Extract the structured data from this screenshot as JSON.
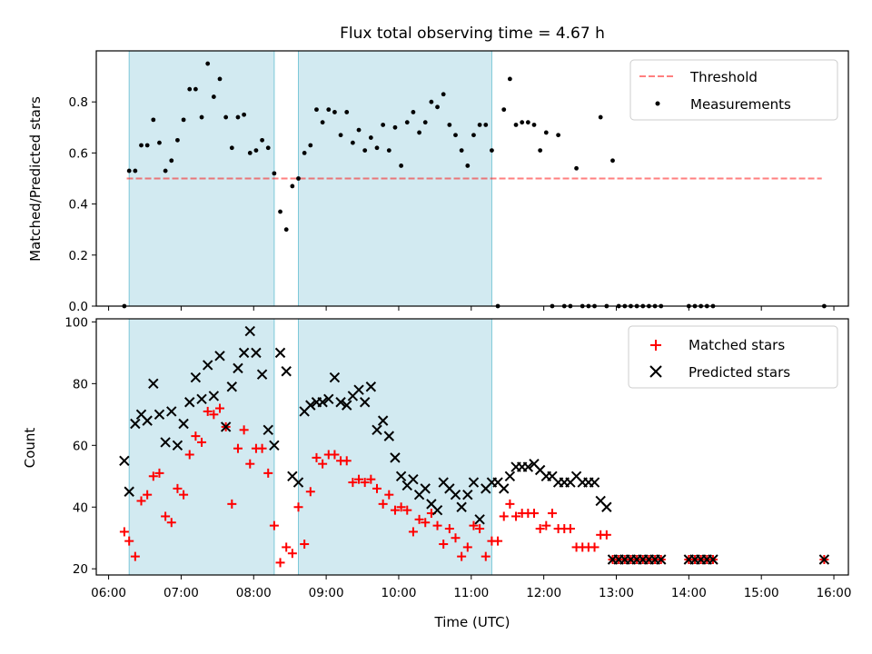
{
  "title": "Flux total observing time = 4.67 h",
  "colors": {
    "band": "#add8e6",
    "threshold": "#ff0000",
    "measurement": "#000000",
    "matched": "#ff0000",
    "predicted": "#000000"
  },
  "chart_data": [
    {
      "type": "scatter",
      "ylabel": "Matched/Predicted stars",
      "xlim_hours": [
        5.83,
        16.2
      ],
      "ylim": [
        0,
        1.0
      ],
      "yticks": [
        "0.0",
        "0.2",
        "0.4",
        "0.6",
        "0.8"
      ],
      "ytick_values": [
        0,
        0.2,
        0.4,
        0.6,
        0.8
      ],
      "observing_windows": [
        [
          "06:17",
          "08:17"
        ],
        [
          "08:37",
          "11:17"
        ]
      ],
      "legend": {
        "placement": "upper right",
        "threshold": "Threshold",
        "measurements": "Measurements"
      },
      "threshold": {
        "value": 0.5,
        "x_range": [
          "06:15",
          "15:50"
        ]
      },
      "series": [
        {
          "name": "Measurements",
          "x": [
            "06:13",
            "06:17",
            "06:22",
            "06:27",
            "06:32",
            "06:37",
            "06:42",
            "06:47",
            "06:52",
            "06:57",
            "07:02",
            "07:07",
            "07:12",
            "07:17",
            "07:22",
            "07:27",
            "07:32",
            "07:37",
            "07:42",
            "07:47",
            "07:52",
            "07:57",
            "08:02",
            "08:07",
            "08:12",
            "08:17",
            "08:22",
            "08:27",
            "08:32",
            "08:37",
            "08:42",
            "08:47",
            "08:52",
            "08:57",
            "09:02",
            "09:07",
            "09:12",
            "09:17",
            "09:22",
            "09:27",
            "09:32",
            "09:37",
            "09:42",
            "09:47",
            "09:52",
            "09:57",
            "10:02",
            "10:07",
            "10:12",
            "10:17",
            "10:22",
            "10:27",
            "10:32",
            "10:37",
            "10:42",
            "10:47",
            "10:52",
            "10:57",
            "11:02",
            "11:07",
            "11:12",
            "11:17",
            "11:22",
            "11:27",
            "11:32",
            "11:37",
            "11:42",
            "11:47",
            "11:52",
            "11:57",
            "12:02",
            "12:07",
            "12:12",
            "12:17",
            "12:22",
            "12:27",
            "12:32",
            "12:37",
            "12:42",
            "12:47",
            "12:52",
            "12:57",
            "13:02",
            "13:07",
            "13:12",
            "13:17",
            "13:22",
            "13:27",
            "13:32",
            "13:37",
            "14:00",
            "14:05",
            "14:10",
            "14:15",
            "14:20",
            "15:52"
          ],
          "y": [
            0.0,
            0.53,
            0.53,
            0.63,
            0.63,
            0.73,
            0.64,
            0.53,
            0.57,
            0.65,
            0.73,
            0.85,
            0.85,
            0.74,
            0.95,
            0.82,
            0.89,
            0.74,
            0.62,
            0.74,
            0.75,
            0.6,
            0.61,
            0.65,
            0.62,
            0.52,
            0.37,
            0.3,
            0.47,
            0.5,
            0.6,
            0.63,
            0.77,
            0.72,
            0.77,
            0.76,
            0.67,
            0.76,
            0.64,
            0.69,
            0.61,
            0.66,
            0.62,
            0.71,
            0.61,
            0.7,
            0.55,
            0.72,
            0.76,
            0.68,
            0.72,
            0.8,
            0.78,
            0.83,
            0.71,
            0.67,
            0.61,
            0.55,
            0.67,
            0.71,
            0.71,
            0.61,
            0.0,
            0.77,
            0.89,
            0.71,
            0.72,
            0.72,
            0.71,
            0.61,
            0.68,
            0.0,
            0.67,
            0.0,
            0.0,
            0.54,
            0.0,
            0.0,
            0.0,
            0.74,
            0.0,
            0.57,
            0.0,
            0.0,
            0.0,
            0.0,
            0.0,
            0.0,
            0.0,
            0.0,
            0.0,
            0.0,
            0.0,
            0.0,
            0.0,
            0.0
          ]
        }
      ]
    },
    {
      "type": "scatter",
      "xlabel": "Time (UTC)",
      "ylabel": "Count",
      "xlim_hours": [
        5.83,
        16.2
      ],
      "ylim": [
        18,
        101
      ],
      "yticks": [
        "20",
        "40",
        "60",
        "80",
        "100"
      ],
      "ytick_values": [
        20,
        40,
        60,
        80,
        100
      ],
      "xticks": [
        "06:00",
        "07:00",
        "08:00",
        "09:00",
        "10:00",
        "11:00",
        "12:00",
        "13:00",
        "14:00",
        "15:00",
        "16:00"
      ],
      "xtick_hours": [
        6,
        7,
        8,
        9,
        10,
        11,
        12,
        13,
        14,
        15,
        16
      ],
      "observing_windows": [
        [
          "06:17",
          "08:17"
        ],
        [
          "08:37",
          "11:17"
        ]
      ],
      "legend": {
        "placement": "upper right",
        "matched": "Matched stars",
        "predicted": "Predicted stars"
      },
      "series": [
        {
          "name": "Matched stars",
          "x": [
            "06:13",
            "06:17",
            "06:22",
            "06:27",
            "06:32",
            "06:37",
            "06:42",
            "06:47",
            "06:52",
            "06:57",
            "07:02",
            "07:07",
            "07:12",
            "07:17",
            "07:22",
            "07:27",
            "07:32",
            "07:37",
            "07:42",
            "07:47",
            "07:52",
            "07:57",
            "08:02",
            "08:07",
            "08:12",
            "08:17",
            "08:22",
            "08:27",
            "08:32",
            "08:37",
            "08:42",
            "08:47",
            "08:52",
            "08:57",
            "09:02",
            "09:07",
            "09:12",
            "09:17",
            "09:22",
            "09:27",
            "09:32",
            "09:37",
            "09:42",
            "09:47",
            "09:52",
            "09:57",
            "10:02",
            "10:07",
            "10:12",
            "10:17",
            "10:22",
            "10:27",
            "10:32",
            "10:37",
            "10:42",
            "10:47",
            "10:52",
            "10:57",
            "11:02",
            "11:07",
            "11:12",
            "11:17",
            "11:22",
            "11:27",
            "11:32",
            "11:37",
            "11:42",
            "11:47",
            "11:52",
            "11:57",
            "12:02",
            "12:07",
            "12:12",
            "12:17",
            "12:22",
            "12:27",
            "12:32",
            "12:37",
            "12:42",
            "12:47",
            "12:52",
            "12:57",
            "13:02",
            "13:07",
            "13:12",
            "13:17",
            "13:22",
            "13:27",
            "13:32",
            "13:37",
            "14:00",
            "14:05",
            "14:10",
            "14:15",
            "14:20",
            "15:52"
          ],
          "y": [
            32,
            29,
            24,
            42,
            44,
            50,
            51,
            37,
            35,
            46,
            44,
            57,
            63,
            61,
            71,
            70,
            72,
            66,
            41,
            59,
            65,
            54,
            59,
            59,
            51,
            34,
            22,
            27,
            25,
            40,
            28,
            45,
            56,
            54,
            57,
            57,
            55,
            55,
            48,
            49,
            48,
            49,
            46,
            41,
            44,
            39,
            40,
            39,
            32,
            36,
            35,
            38,
            34,
            28,
            33,
            30,
            24,
            27,
            34,
            33,
            24,
            29,
            29,
            37,
            41,
            37,
            38,
            38,
            38,
            33,
            34,
            38,
            33,
            33,
            33,
            27,
            27,
            27,
            27,
            31,
            31,
            23,
            23,
            23,
            23,
            23,
            23,
            23,
            23,
            23,
            23,
            23,
            23,
            23,
            23,
            23
          ]
        },
        {
          "name": "Predicted stars",
          "x": [
            "06:13",
            "06:17",
            "06:22",
            "06:27",
            "06:32",
            "06:37",
            "06:42",
            "06:47",
            "06:52",
            "06:57",
            "07:02",
            "07:07",
            "07:12",
            "07:17",
            "07:22",
            "07:27",
            "07:32",
            "07:37",
            "07:42",
            "07:47",
            "07:52",
            "07:57",
            "08:02",
            "08:07",
            "08:12",
            "08:17",
            "08:22",
            "08:27",
            "08:32",
            "08:37",
            "08:42",
            "08:47",
            "08:52",
            "08:57",
            "09:02",
            "09:07",
            "09:12",
            "09:17",
            "09:22",
            "09:27",
            "09:32",
            "09:37",
            "09:42",
            "09:47",
            "09:52",
            "09:57",
            "10:02",
            "10:07",
            "10:12",
            "10:17",
            "10:22",
            "10:27",
            "10:32",
            "10:37",
            "10:42",
            "10:47",
            "10:52",
            "10:57",
            "11:02",
            "11:07",
            "11:12",
            "11:17",
            "11:22",
            "11:27",
            "11:32",
            "11:37",
            "11:42",
            "11:47",
            "11:52",
            "11:57",
            "12:02",
            "12:07",
            "12:12",
            "12:17",
            "12:22",
            "12:27",
            "12:32",
            "12:37",
            "12:42",
            "12:47",
            "12:52",
            "12:57",
            "13:02",
            "13:07",
            "13:12",
            "13:17",
            "13:22",
            "13:27",
            "13:32",
            "13:37",
            "14:00",
            "14:05",
            "14:10",
            "14:15",
            "14:20",
            "15:52"
          ],
          "y": [
            55,
            45,
            67,
            70,
            68,
            80,
            70,
            61,
            71,
            60,
            67,
            74,
            82,
            75,
            86,
            76,
            89,
            66,
            79,
            85,
            90,
            97,
            90,
            83,
            65,
            60,
            90,
            84,
            50,
            48,
            71,
            73,
            74,
            74,
            75,
            82,
            74,
            73,
            76,
            78,
            74,
            79,
            65,
            68,
            63,
            56,
            50,
            47,
            49,
            44,
            46,
            41,
            39,
            48,
            46,
            44,
            40,
            44,
            48,
            36,
            46,
            48,
            48,
            46,
            50,
            53,
            53,
            53,
            54,
            52,
            50,
            50,
            48,
            48,
            48,
            50,
            48,
            48,
            48,
            42,
            40,
            23,
            23,
            23,
            23,
            23,
            23,
            23,
            23,
            23,
            23,
            23,
            23,
            23,
            23,
            23
          ]
        }
      ]
    }
  ]
}
